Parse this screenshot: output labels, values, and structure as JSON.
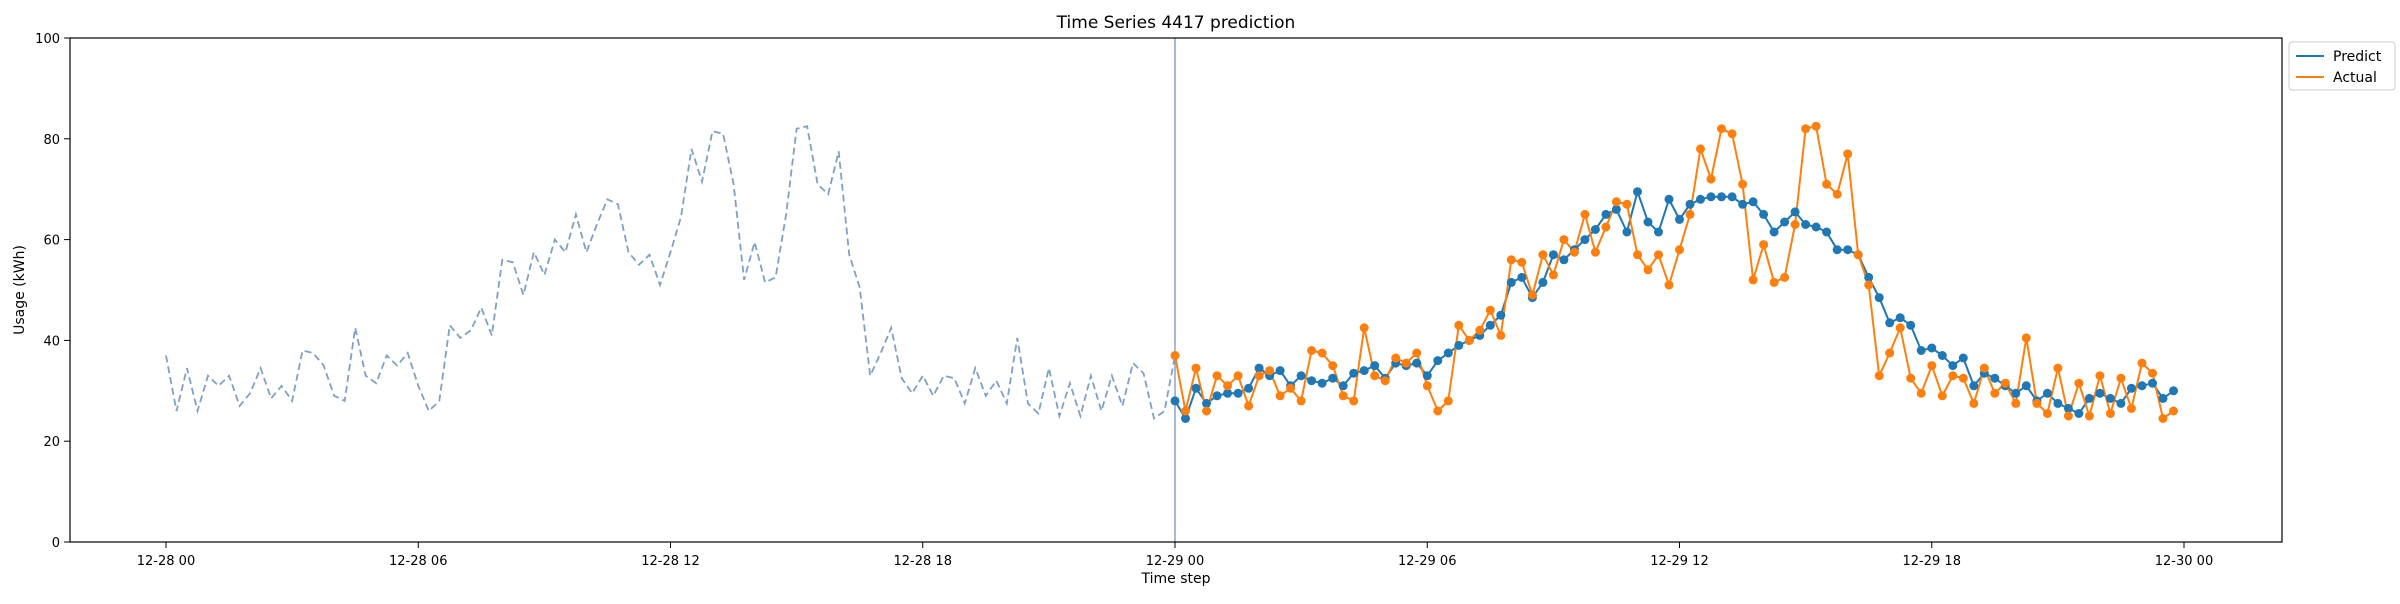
{
  "chart_data": {
    "type": "line",
    "title": "Time Series 4417 prediction",
    "xlabel": "Time step",
    "ylabel": "Usage (kWh)",
    "x_ticks": [
      "12-28 00",
      "12-28 06",
      "12-28 12",
      "12-28 18",
      "12-29 00",
      "12-29 06",
      "12-29 12",
      "12-29 18",
      "12-30 00"
    ],
    "y_ticks": [
      "0",
      "20",
      "40",
      "60",
      "80",
      "100"
    ],
    "ylim": [
      0,
      100
    ],
    "step_minutes": 15,
    "grid": false,
    "legend_position": "top-right",
    "vline": "12-29 00",
    "colors": {
      "history": "#7fa0c6",
      "predict": "#1f77b4",
      "actual": "#ff7f0e",
      "vline": "#8da2cf"
    },
    "history": {
      "style": "dashed",
      "x_start": "12-28 00",
      "values": [
        37.0,
        26.0,
        34.5,
        26.0,
        33.0,
        31.0,
        33.0,
        27.0,
        29.5,
        34.5,
        28.5,
        31.0,
        28.0,
        38.0,
        37.5,
        35.0,
        29.0,
        28.0,
        42.5,
        33.0,
        31.5,
        37.0,
        35.0,
        37.5,
        31.0,
        26.0,
        28.0,
        43.0,
        40.5,
        42.0,
        46.5,
        41.0,
        56.0,
        55.5,
        49.0,
        57.5,
        53.0,
        60.0,
        57.5,
        65.0,
        57.5,
        63.0,
        68.0,
        67.0,
        57.5,
        55.0,
        57.0,
        51.0,
        57.5,
        64.5,
        78.0,
        71.5,
        81.5,
        81.0,
        71.0,
        52.0,
        59.5,
        51.5,
        52.5,
        65.0,
        82.0,
        82.5,
        71.0,
        69.0,
        77.5,
        57.0,
        50.5,
        33.0,
        37.5,
        42.5,
        32.5,
        29.5,
        33.0,
        29.0,
        33.0,
        32.5,
        27.5,
        34.5,
        29.0,
        32.0,
        27.5,
        40.5,
        27.5,
        25.5,
        34.5,
        25.0,
        31.5,
        25.0,
        33.0,
        26.0,
        33.0,
        27.0,
        35.5,
        33.5,
        24.5,
        26.0,
        37.0
      ]
    },
    "series": [
      {
        "name": "Predict",
        "x_start": "12-29 00",
        "values": [
          28.0,
          24.5,
          30.5,
          27.5,
          29.0,
          29.5,
          29.5,
          30.5,
          34.5,
          33.0,
          34.0,
          31.0,
          33.0,
          32.0,
          31.5,
          32.5,
          31.0,
          33.5,
          34.0,
          35.0,
          32.5,
          35.5,
          35.0,
          35.5,
          33.0,
          36.0,
          37.5,
          39.0,
          40.0,
          41.0,
          43.0,
          45.0,
          51.5,
          52.5,
          48.5,
          51.5,
          57.0,
          56.0,
          58.0,
          60.0,
          62.0,
          65.0,
          66.0,
          61.5,
          69.5,
          63.5,
          61.5,
          68.0,
          64.0,
          67.0,
          68.0,
          68.5,
          68.5,
          68.5,
          67.0,
          67.5,
          65.0,
          61.5,
          63.5,
          65.5,
          63.0,
          62.5,
          61.5,
          58.0,
          58.0,
          57.0,
          52.5,
          48.5,
          43.5,
          44.5,
          43.0,
          38.0,
          38.5,
          37.0,
          35.0,
          36.5,
          31.0,
          33.5,
          32.5,
          31.0,
          29.5,
          31.0,
          28.0,
          29.5,
          27.5,
          26.5,
          25.5,
          28.5,
          29.5,
          28.5,
          27.5,
          30.5,
          31.0,
          31.5,
          28.5,
          30.0
        ]
      },
      {
        "name": "Actual",
        "x_start": "12-29 00",
        "values": [
          37.0,
          26.0,
          34.5,
          26.0,
          33.0,
          31.0,
          33.0,
          27.0,
          33.0,
          34.0,
          29.0,
          30.5,
          28.0,
          38.0,
          37.5,
          35.0,
          29.0,
          28.0,
          42.5,
          33.0,
          32.0,
          36.5,
          35.5,
          37.5,
          31.0,
          26.0,
          28.0,
          43.0,
          40.0,
          42.0,
          46.0,
          41.0,
          56.0,
          55.5,
          49.0,
          57.0,
          53.0,
          60.0,
          57.5,
          65.0,
          57.5,
          62.5,
          67.5,
          67.0,
          57.0,
          54.0,
          57.0,
          51.0,
          58.0,
          65.0,
          78.0,
          72.0,
          82.0,
          81.0,
          71.0,
          52.0,
          59.0,
          51.5,
          52.5,
          63.0,
          82.0,
          82.5,
          71.0,
          69.0,
          77.0,
          57.0,
          51.0,
          33.0,
          37.5,
          42.5,
          32.5,
          29.5,
          35.0,
          29.0,
          33.0,
          32.5,
          27.5,
          34.5,
          29.5,
          31.5,
          27.5,
          40.5,
          27.5,
          25.5,
          34.5,
          25.0,
          31.5,
          25.0,
          33.0,
          25.5,
          32.5,
          26.5,
          35.5,
          33.5,
          24.5,
          26.0
        ]
      }
    ]
  }
}
